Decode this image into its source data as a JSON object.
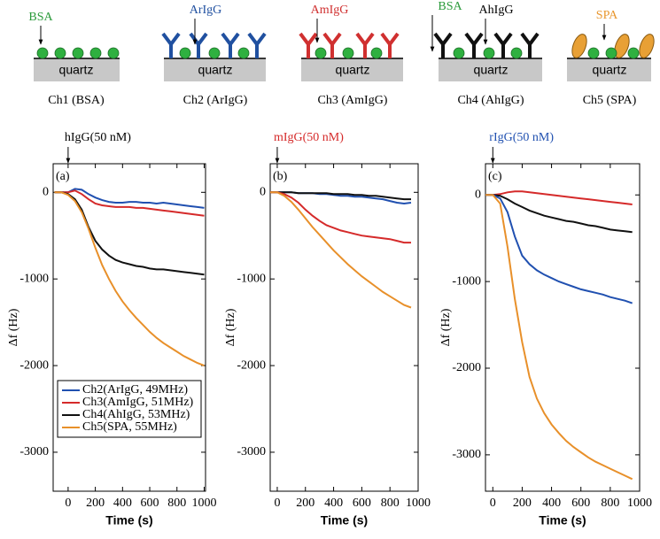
{
  "schematic": {
    "panels": [
      {
        "caption": "Ch1 (BSA)",
        "substrate": "quartz",
        "labels": [
          {
            "text": "BSA",
            "color": "#2a9a3a"
          }
        ]
      },
      {
        "caption": "Ch2 (ArIgG)",
        "substrate": "quartz",
        "labels": [
          {
            "text": "ArIgG",
            "color": "#2050a0"
          }
        ]
      },
      {
        "caption": "Ch3 (AmIgG)",
        "substrate": "quartz",
        "labels": [
          {
            "text": "AmIgG",
            "color": "#d03030"
          }
        ]
      },
      {
        "caption": "Ch4 (AhIgG)",
        "substrate": "quartz",
        "labels": [
          {
            "text": "BSA",
            "color": "#2a9a3a"
          },
          {
            "text": "AhIgG",
            "color": "#000000"
          }
        ]
      },
      {
        "caption": "Ch5 (SPA)",
        "substrate": "quartz",
        "labels": [
          {
            "text": "SPA",
            "color": "#e8962e"
          }
        ]
      }
    ]
  },
  "chart_data": [
    {
      "type": "line",
      "panel_label": "(a)",
      "annotation": {
        "text": "hIgG(50 nM)",
        "x": 0,
        "color": "#000000"
      },
      "x_label": "Time (s)",
      "y_label": "Δf (Hz)",
      "x": [
        -100,
        -50,
        0,
        50,
        100,
        150,
        200,
        250,
        300,
        350,
        400,
        450,
        500,
        550,
        600,
        650,
        700,
        750,
        800,
        850,
        900,
        950,
        1000
      ],
      "series": [
        {
          "name": "Ch2(ArIgG, 49MHz)",
          "color": "#2050b0",
          "values": [
            0,
            0,
            0,
            40,
            30,
            -20,
            -60,
            -90,
            -110,
            -120,
            -120,
            -110,
            -110,
            -120,
            -120,
            -130,
            -120,
            -130,
            -140,
            -150,
            -160,
            -170,
            -180
          ]
        },
        {
          "name": "Ch3(AmIgG, 51MHz)",
          "color": "#d52a2a",
          "values": [
            0,
            0,
            0,
            20,
            -20,
            -80,
            -130,
            -150,
            -160,
            -170,
            -170,
            -170,
            -180,
            -180,
            -190,
            -200,
            -210,
            -220,
            -230,
            -240,
            -250,
            -260,
            -270
          ]
        },
        {
          "name": "Ch4(AhIgG, 53MHz)",
          "color": "#111111",
          "values": [
            0,
            0,
            -20,
            -80,
            -200,
            -400,
            -560,
            -660,
            -730,
            -780,
            -810,
            -830,
            -850,
            -860,
            -880,
            -890,
            -890,
            -900,
            -910,
            -920,
            -930,
            -940,
            -950
          ]
        },
        {
          "name": "Ch5(SPA, 55MHz)",
          "color": "#e8902a",
          "values": [
            0,
            0,
            -30,
            -100,
            -230,
            -420,
            -640,
            -840,
            -1000,
            -1140,
            -1260,
            -1360,
            -1450,
            -1530,
            -1610,
            -1680,
            -1740,
            -1790,
            -1840,
            -1890,
            -1930,
            -1970,
            -2000
          ]
        }
      ],
      "xlim": [
        -110,
        1010
      ],
      "ylim": [
        -3450,
        330
      ],
      "xticks": [
        0,
        200,
        400,
        600,
        800,
        1000
      ],
      "yticks": [
        0,
        -1000,
        -2000,
        -3000
      ],
      "legend": "lower left"
    },
    {
      "type": "line",
      "panel_label": "(b)",
      "annotation": {
        "text": "mIgG(50 nM)",
        "x": 0,
        "color": "#d52a2a"
      },
      "x_label": "Time (s)",
      "y_label": "Δf (Hz)",
      "x": [
        -50,
        0,
        50,
        100,
        150,
        200,
        250,
        300,
        350,
        400,
        450,
        500,
        550,
        600,
        650,
        700,
        750,
        800,
        850,
        900,
        950
      ],
      "series": [
        {
          "color": "#2050b0",
          "values": [
            0,
            0,
            0,
            0,
            -10,
            -10,
            -10,
            -20,
            -20,
            -30,
            -40,
            -40,
            -50,
            -50,
            -60,
            -70,
            -80,
            -100,
            -120,
            -130,
            -120
          ]
        },
        {
          "color": "#111111",
          "values": [
            0,
            0,
            0,
            0,
            -10,
            -10,
            -10,
            -10,
            -10,
            -20,
            -20,
            -20,
            -30,
            -30,
            -40,
            -40,
            -50,
            -60,
            -70,
            -80,
            -80
          ]
        },
        {
          "color": "#d52a2a",
          "values": [
            0,
            0,
            -20,
            -60,
            -120,
            -200,
            -270,
            -330,
            -380,
            -410,
            -440,
            -460,
            -480,
            -500,
            -510,
            -520,
            -530,
            -540,
            -560,
            -580,
            -580
          ]
        },
        {
          "color": "#e8902a",
          "values": [
            0,
            0,
            -40,
            -110,
            -200,
            -300,
            -400,
            -490,
            -580,
            -670,
            -750,
            -830,
            -900,
            -970,
            -1030,
            -1090,
            -1150,
            -1200,
            -1250,
            -1300,
            -1330
          ]
        }
      ],
      "xlim": [
        -50,
        1000
      ],
      "ylim": [
        -3450,
        330
      ],
      "xticks": [
        0,
        200,
        400,
        600,
        800,
        1000
      ],
      "yticks": [
        0,
        -1000,
        -2000,
        -3000
      ]
    },
    {
      "type": "line",
      "panel_label": "(c)",
      "annotation": {
        "text": "rIgG(50 nM)",
        "x": 0,
        "color": "#2050b0"
      },
      "x_label": "Time (s)",
      "y_label": "Δf (Hz)",
      "x": [
        -50,
        0,
        50,
        100,
        150,
        200,
        250,
        300,
        350,
        400,
        450,
        500,
        550,
        600,
        650,
        700,
        750,
        800,
        850,
        900,
        950
      ],
      "series": [
        {
          "color": "#d52a2a",
          "values": [
            0,
            0,
            10,
            30,
            40,
            40,
            30,
            20,
            10,
            0,
            -10,
            -20,
            -30,
            -40,
            -50,
            -60,
            -70,
            -80,
            -90,
            -100,
            -110
          ]
        },
        {
          "color": "#111111",
          "values": [
            0,
            0,
            -10,
            -50,
            -100,
            -140,
            -180,
            -210,
            -240,
            -260,
            -280,
            -300,
            -310,
            -330,
            -350,
            -360,
            -380,
            -400,
            -410,
            -420,
            -430
          ]
        },
        {
          "color": "#2050b0",
          "values": [
            0,
            0,
            -40,
            -200,
            -480,
            -700,
            -800,
            -870,
            -920,
            -960,
            -1000,
            -1030,
            -1060,
            -1090,
            -1110,
            -1130,
            -1150,
            -1180,
            -1200,
            -1220,
            -1250
          ]
        },
        {
          "color": "#e8902a",
          "values": [
            0,
            0,
            -100,
            -600,
            -1200,
            -1700,
            -2100,
            -2350,
            -2520,
            -2650,
            -2750,
            -2840,
            -2910,
            -2970,
            -3030,
            -3080,
            -3120,
            -3160,
            -3200,
            -3240,
            -3280
          ]
        }
      ],
      "xlim": [
        -50,
        1000
      ],
      "ylim": [
        -3420,
        360
      ],
      "xticks": [
        0,
        200,
        400,
        600,
        800,
        1000
      ],
      "yticks": [
        0,
        -1000,
        -2000,
        -3000
      ]
    }
  ]
}
